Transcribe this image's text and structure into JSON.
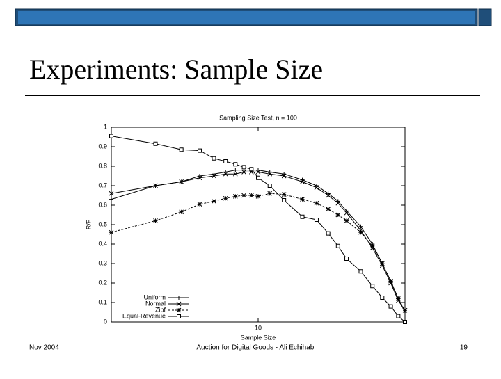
{
  "slide": {
    "title": "Experiments: Sample Size",
    "footer_left": "Nov 2004",
    "footer_center": "Auction for Digital Goods - Ali Echihabi",
    "footer_right": "19"
  },
  "chart_data": {
    "type": "line",
    "title": "Sampling Size Test, n = 100",
    "x_label": "Sample Size",
    "y_label": "R/F",
    "x": [
      1,
      2,
      3,
      4,
      5,
      6,
      7,
      8,
      9,
      10,
      12,
      15,
      20,
      25,
      30,
      35,
      40,
      50,
      60,
      70,
      80,
      90,
      100
    ],
    "xlim": [
      1,
      100
    ],
    "xticks": [
      10
    ],
    "x_log": true,
    "ylim": [
      0,
      1
    ],
    "yticks": [
      0,
      0.1,
      0.2,
      0.3,
      0.4,
      0.5,
      0.6,
      0.7,
      0.8,
      0.9,
      1
    ],
    "legend": "lower-left",
    "series": [
      {
        "name": "Uniform",
        "color": "#000000",
        "marker": "plus",
        "dashed": false,
        "values": [
          0.63,
          0.7,
          0.72,
          0.75,
          0.76,
          0.77,
          0.78,
          0.78,
          0.78,
          0.78,
          0.77,
          0.76,
          0.73,
          0.7,
          0.66,
          0.62,
          0.57,
          0.49,
          0.4,
          0.3,
          0.21,
          0.12,
          0.05
        ]
      },
      {
        "name": "Normal",
        "color": "#000000",
        "marker": "cross",
        "dashed": false,
        "values": [
          0.66,
          0.7,
          0.72,
          0.74,
          0.75,
          0.76,
          0.76,
          0.77,
          0.77,
          0.77,
          0.76,
          0.75,
          0.72,
          0.69,
          0.65,
          0.61,
          0.56,
          0.47,
          0.38,
          0.29,
          0.2,
          0.11,
          0.06
        ]
      },
      {
        "name": "Zipf",
        "color": "#000000",
        "marker": "star",
        "dashed": true,
        "values": [
          0.46,
          0.52,
          0.565,
          0.605,
          0.62,
          0.635,
          0.645,
          0.65,
          0.65,
          0.645,
          0.66,
          0.655,
          0.63,
          0.61,
          0.58,
          0.55,
          0.52,
          0.46,
          0.39,
          0.3,
          0.21,
          0.12,
          0.06
        ]
      },
      {
        "name": "Equal-Revenue",
        "color": "#000000",
        "marker": "square",
        "dashed": false,
        "values": [
          0.955,
          0.915,
          0.885,
          0.88,
          0.84,
          0.825,
          0.81,
          0.795,
          0.785,
          0.74,
          0.7,
          0.625,
          0.54,
          0.525,
          0.455,
          0.39,
          0.325,
          0.26,
          0.185,
          0.125,
          0.08,
          0.03,
          0.0
        ]
      }
    ]
  }
}
